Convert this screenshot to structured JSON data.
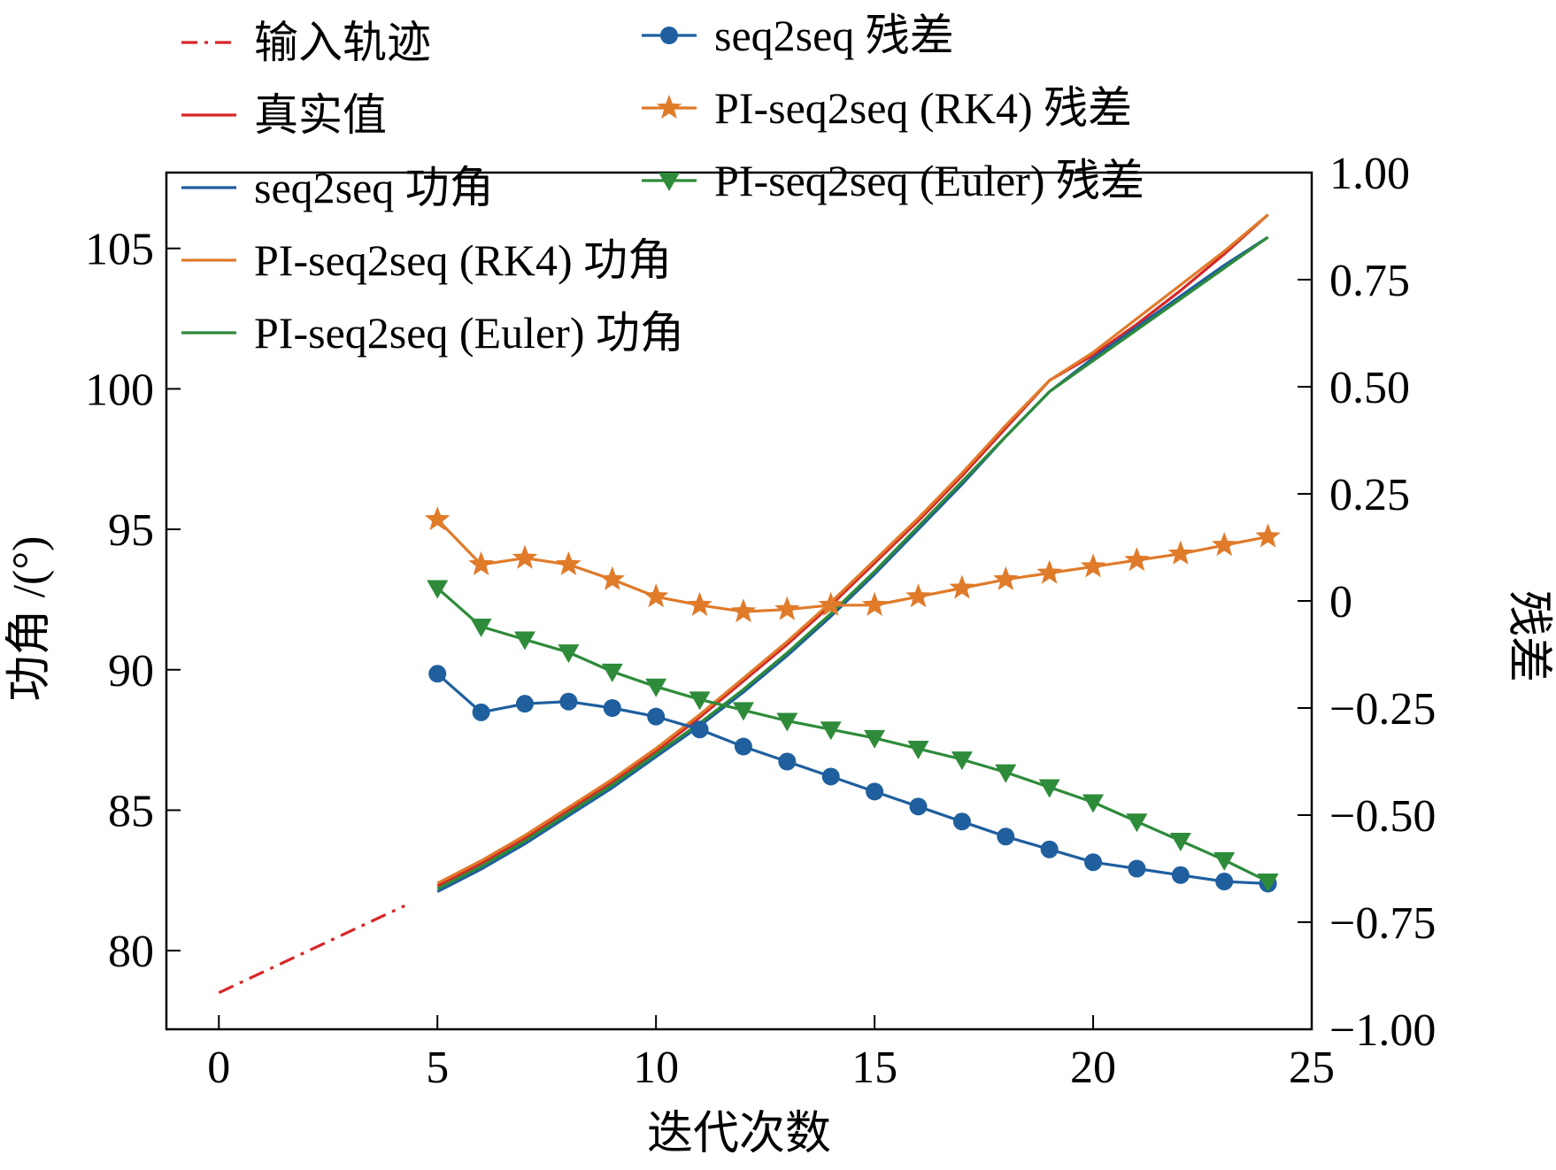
{
  "chart_data": {
    "type": "line",
    "xlabel": "迭代次数",
    "ylabel": "功角 /(°)",
    "y2label": "残差",
    "xlim": [
      -1.2,
      25
    ],
    "ylim": [
      77.2,
      107.7
    ],
    "y2lim": [
      -1.0,
      1.0
    ],
    "xticks": [
      "0",
      "5",
      "10",
      "15",
      "20",
      "25"
    ],
    "xtick_values": [
      0,
      5,
      10,
      15,
      20,
      25
    ],
    "yticks": [
      "80",
      "85",
      "90",
      "95",
      "100",
      "105"
    ],
    "ytick_values": [
      80,
      85,
      90,
      95,
      100,
      105
    ],
    "y2ticks": [
      "1.00",
      "0.75",
      "0.50",
      "0.25",
      "0",
      "−0.25",
      "−0.50",
      "−0.75",
      "−1.00"
    ],
    "y2tick_values": [
      1.0,
      0.75,
      0.5,
      0.25,
      0,
      -0.25,
      -0.5,
      -0.75,
      -1.0
    ],
    "grid": false,
    "legend_position": "top-left",
    "series": [
      {
        "name": "输入轨迹",
        "axis": "left",
        "color": "#d62728",
        "dash": "dashdot",
        "x": [
          0,
          4.25
        ],
        "y": [
          78.5,
          81.6
        ]
      },
      {
        "name": "真实值",
        "axis": "left",
        "color": "#d62728",
        "x": [
          5,
          6,
          7,
          8,
          9,
          10,
          11,
          12,
          13,
          14,
          15,
          16,
          17,
          18,
          19,
          20,
          21,
          22,
          23,
          24
        ],
        "y": [
          82.3,
          83.1,
          84.0,
          85.0,
          86.0,
          87.1,
          88.3,
          89.6,
          90.9,
          92.3,
          93.8,
          95.3,
          96.9,
          98.6,
          100.3,
          101.2,
          102.3,
          103.5,
          104.8,
          106.2
        ]
      },
      {
        "name": "seq2seq 功角",
        "axis": "left",
        "color": "#1f5f9e",
        "x": [
          5,
          6,
          7,
          8,
          9,
          10,
          11,
          12,
          13,
          14,
          15,
          16,
          17,
          18,
          19,
          20,
          21,
          22,
          23,
          24
        ],
        "y": [
          82.1,
          82.9,
          83.8,
          84.8,
          85.8,
          86.9,
          88.0,
          89.2,
          90.5,
          91.9,
          93.4,
          95.0,
          96.6,
          98.3,
          99.9,
          101.1,
          102.2,
          103.3,
          104.4,
          105.4
        ]
      },
      {
        "name": "PI-seq2seq (RK4) 功角",
        "axis": "left",
        "color": "#e07b2a",
        "x": [
          5,
          6,
          7,
          8,
          9,
          10,
          11,
          12,
          13,
          14,
          15,
          16,
          17,
          18,
          19,
          20,
          21,
          22,
          23,
          24
        ],
        "y": [
          82.4,
          83.2,
          84.1,
          85.1,
          86.1,
          87.2,
          88.4,
          89.7,
          91.0,
          92.4,
          93.9,
          95.4,
          97.0,
          98.7,
          100.3,
          101.3,
          102.5,
          103.7,
          104.9,
          106.2
        ]
      },
      {
        "name": "PI-seq2seq (Euler) 功角",
        "axis": "left",
        "color": "#2e8b3a",
        "x": [
          5,
          6,
          7,
          8,
          9,
          10,
          11,
          12,
          13,
          14,
          15,
          16,
          17,
          18,
          19,
          20,
          21,
          22,
          23,
          24
        ],
        "y": [
          82.2,
          83.0,
          83.9,
          84.9,
          85.9,
          87.0,
          88.1,
          89.3,
          90.6,
          92.0,
          93.5,
          95.1,
          96.7,
          98.3,
          99.9,
          101.0,
          102.1,
          103.2,
          104.3,
          105.4
        ]
      },
      {
        "name": "seq2seq 残差",
        "axis": "right",
        "color": "#1f5f9e",
        "marker": "circle",
        "x": [
          5,
          6,
          7,
          8,
          9,
          10,
          11,
          12,
          13,
          14,
          15,
          16,
          17,
          18,
          19,
          20,
          21,
          22,
          23,
          24
        ],
        "y": [
          -0.17,
          -0.26,
          -0.24,
          -0.235,
          -0.25,
          -0.27,
          -0.3,
          -0.34,
          -0.375,
          -0.41,
          -0.445,
          -0.48,
          -0.515,
          -0.55,
          -0.58,
          -0.61,
          -0.625,
          -0.64,
          -0.655,
          -0.66
        ]
      },
      {
        "name": "PI-seq2seq (RK4) 残差",
        "axis": "right",
        "color": "#e07b2a",
        "marker": "star",
        "x": [
          5,
          6,
          7,
          8,
          9,
          10,
          11,
          12,
          13,
          14,
          15,
          16,
          17,
          18,
          19,
          20,
          21,
          22,
          23,
          24
        ],
        "y": [
          0.19,
          0.085,
          0.1,
          0.085,
          0.05,
          0.01,
          -0.01,
          -0.025,
          -0.02,
          -0.01,
          -0.01,
          0.01,
          0.03,
          0.05,
          0.065,
          0.08,
          0.095,
          0.11,
          0.13,
          0.15
        ]
      },
      {
        "name": "PI-seq2seq (Euler) 残差",
        "axis": "right",
        "color": "#2e8b3a",
        "marker": "triangle-down",
        "x": [
          5,
          6,
          7,
          8,
          9,
          10,
          11,
          12,
          13,
          14,
          15,
          16,
          17,
          18,
          19,
          20,
          21,
          22,
          23,
          24
        ],
        "y": [
          0.03,
          -0.06,
          -0.09,
          -0.12,
          -0.165,
          -0.2,
          -0.23,
          -0.255,
          -0.28,
          -0.3,
          -0.32,
          -0.345,
          -0.37,
          -0.4,
          -0.435,
          -0.47,
          -0.515,
          -0.56,
          -0.605,
          -0.655
        ]
      }
    ]
  }
}
